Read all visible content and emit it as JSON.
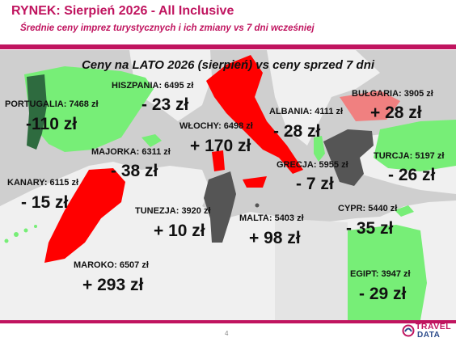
{
  "header": {
    "title": "RYNEK: Sierpień 2026 - All Inclusive",
    "subtitle": "Średnie ceny imprez turystycznych i ich zmiany vs 7 dni wcześniej"
  },
  "map": {
    "title": "Ceny na LATO 2026 (sierpień) vs ceny sprzed 7 dni",
    "colors": {
      "sea": "#cfcfcf",
      "land": "#f0f0f0",
      "increase": "#ff0000",
      "decrease": "#77ee77",
      "small_decrease": "#555555",
      "small_increase": "#f08080"
    },
    "destinations": [
      {
        "key": "portugalia",
        "label": "PORTUGALIA:  7468 zł",
        "change": "-110 zł"
      },
      {
        "key": "hiszpania",
        "label": "HISZPANIA: 6495 zł",
        "change": "- 23 zł"
      },
      {
        "key": "majorka",
        "label": "MAJORKA: 6311 zł",
        "change": "- 38 zł"
      },
      {
        "key": "kanary",
        "label": "KANARY: 6115 zł",
        "change": "- 15 zł"
      },
      {
        "key": "maroko",
        "label": "MAROKO: 6507 zł",
        "change": "+ 293 zł"
      },
      {
        "key": "wlochy",
        "label": "WŁOCHY: 6498 zł",
        "change": "+ 170 zł"
      },
      {
        "key": "tunezja",
        "label": "TUNEZJA: 3920 zł",
        "change": "+ 10 zł"
      },
      {
        "key": "malta",
        "label": "MALTA: 5403 zł",
        "change": "+ 98 zł"
      },
      {
        "key": "albania",
        "label": "ALBANIA: 4111 zł",
        "change": "- 28 zł"
      },
      {
        "key": "grecja",
        "label": "GRECJA: 5955 zł",
        "change": "- 7 zł"
      },
      {
        "key": "bulgaria",
        "label": "BUŁGARIA: 3905 zł",
        "change": "+ 28 zł"
      },
      {
        "key": "turcja",
        "label": "TURCJA: 5197 zł",
        "change": "- 26 zł"
      },
      {
        "key": "cypr",
        "label": "CYPR: 5440 zł",
        "change": "- 35 zł"
      },
      {
        "key": "egipt",
        "label": "EGIPT: 3947 zł",
        "change": "- 29 zł"
      }
    ]
  },
  "footer": {
    "page": "4",
    "logo_line1": "TRAVEL",
    "logo_line2": "DATA"
  }
}
